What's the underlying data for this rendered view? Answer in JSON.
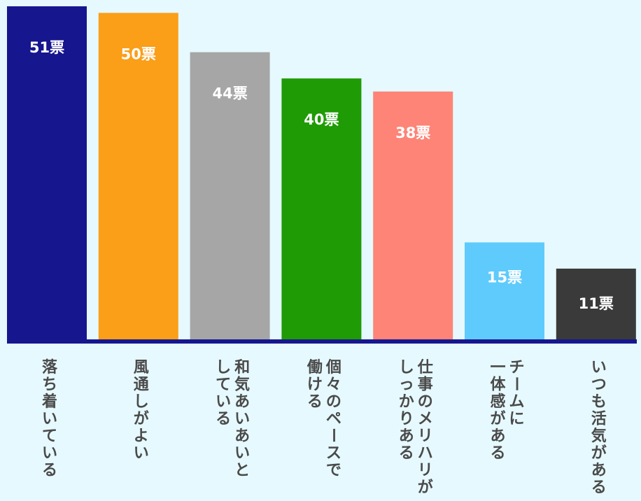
{
  "chart_data": {
    "type": "bar",
    "title": "",
    "xlabel": "",
    "ylabel": "",
    "ylim": [
      0,
      51
    ],
    "grid": false,
    "unit_suffix": "票",
    "categories": [
      "落ち着いている",
      "風通しがよい",
      "和気あいあいとしている",
      "個々のペースで働ける",
      "仕事のメリハリがしっかりある",
      "チームに一体感がある",
      "いつも活気がある"
    ],
    "category_lines": [
      [
        "落ち着いている"
      ],
      [
        "風通しがよい"
      ],
      [
        "和気あいあいと",
        "している"
      ],
      [
        "個々のペースで",
        "働ける"
      ],
      [
        "仕事のメリハリが",
        "しっかりある"
      ],
      [
        "チームに",
        "一体感がある"
      ],
      [
        "いつも活気がある"
      ]
    ],
    "values": [
      51,
      50,
      44,
      40,
      38,
      15,
      11
    ],
    "value_labels": [
      "51票",
      "50票",
      "44票",
      "40票",
      "38票",
      "15票",
      "11票"
    ],
    "colors": [
      "#16168f",
      "#fb9e18",
      "#a6a6a6",
      "#1f9b05",
      "#fd8476",
      "#5fcbfd",
      "#3a3a3a"
    ],
    "baseline_color": "#16168f",
    "background": "#e6f9fe"
  }
}
